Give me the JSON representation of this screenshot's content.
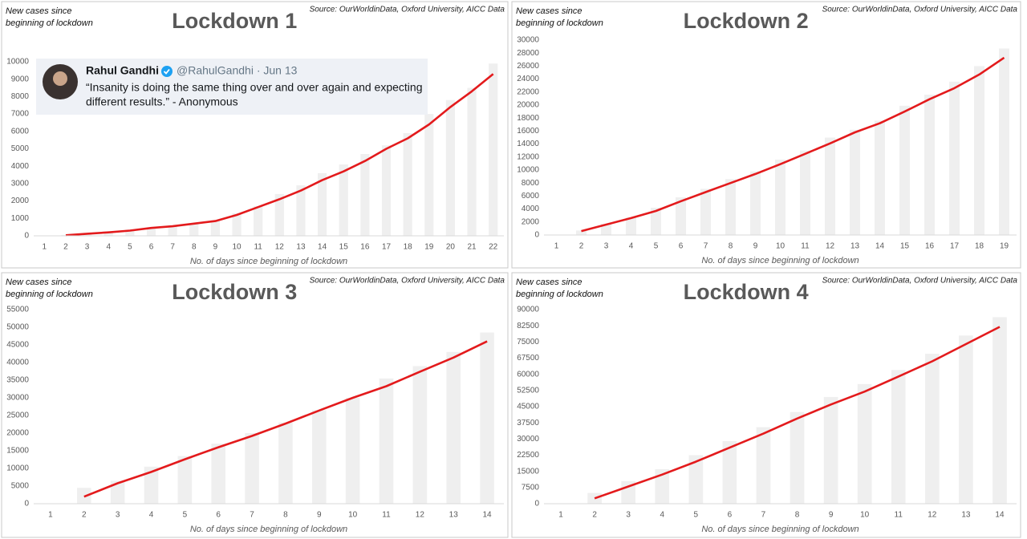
{
  "chart_data": [
    {
      "type": "combo",
      "title": "Lockdown 1",
      "source": "Source: OurWorldinData, Oxford University, AICC Data",
      "ylabel": [
        "New cases since",
        "beginning of lockdown"
      ],
      "xlabel": "No. of days since beginning of lockdown",
      "categories": [
        "1",
        "2",
        "3",
        "4",
        "5",
        "6",
        "7",
        "8",
        "9",
        "10",
        "11",
        "12",
        "13",
        "14",
        "15",
        "16",
        "17",
        "18",
        "19",
        "20",
        "21",
        "22"
      ],
      "series": [
        {
          "type": "bar",
          "color": "#efefef",
          "values": [
            0,
            50,
            150,
            250,
            350,
            450,
            600,
            700,
            900,
            1300,
            1700,
            2400,
            2900,
            3600,
            4100,
            4700,
            5200,
            5900,
            7000,
            7800,
            8500,
            9900
          ]
        },
        {
          "type": "line",
          "color": "#e31a1c",
          "values": [
            null,
            30,
            120,
            200,
            300,
            450,
            550,
            700,
            850,
            1200,
            1650,
            2100,
            2600,
            3200,
            3700,
            4300,
            5000,
            5600,
            6400,
            7400,
            8300,
            9300
          ]
        }
      ],
      "ylim": [
        0,
        10000
      ],
      "yticks": [
        0,
        1000,
        2000,
        3000,
        4000,
        5000,
        6000,
        7000,
        8000,
        9000,
        10000
      ],
      "annotation": {
        "name": "Rahul Gandhi",
        "byline": "@RahulGandhi · Jun 13",
        "text": [
          "“Insanity is doing the same thing over and over again and expecting",
          "different results.” - Anonymous"
        ]
      }
    },
    {
      "type": "combo",
      "title": "Lockdown 2",
      "source": "Source: OurWorldinData, Oxford University, AICC Data",
      "ylabel": [
        "New cases  since",
        "beginning of lockdown"
      ],
      "xlabel": "No. of days since beginning of lockdown",
      "categories": [
        "1",
        "2",
        "3",
        "4",
        "5",
        "6",
        "7",
        "8",
        "9",
        "10",
        "11",
        "12",
        "13",
        "14",
        "15",
        "16",
        "17",
        "18",
        "19"
      ],
      "series": [
        {
          "type": "bar",
          "color": "#efefef",
          "values": [
            0,
            700,
            1700,
            2700,
            4200,
            5800,
            7100,
            8600,
            9800,
            11600,
            13000,
            15000,
            16200,
            17600,
            19900,
            21600,
            23600,
            26000,
            28700
          ]
        },
        {
          "type": "line",
          "color": "#e31a1c",
          "values": [
            null,
            600,
            1600,
            2600,
            3700,
            5200,
            6600,
            8000,
            9400,
            10900,
            12500,
            14100,
            15800,
            17200,
            19000,
            20900,
            22600,
            24700,
            27300
          ]
        }
      ],
      "ylim": [
        0,
        30000
      ],
      "yticks": [
        0,
        2000,
        4000,
        6000,
        8000,
        10000,
        12000,
        14000,
        16000,
        18000,
        20000,
        22000,
        24000,
        26000,
        28000,
        30000
      ]
    },
    {
      "type": "combo",
      "title": "Lockdown 3",
      "source": "Source: OurWorldinData, Oxford University, AICC Data",
      "ylabel": [
        "New cases since",
        "beginning of lockdown"
      ],
      "xlabel": "No. of days since beginning of lockdown",
      "categories": [
        "1",
        "2",
        "3",
        "4",
        "5",
        "6",
        "7",
        "8",
        "9",
        "10",
        "11",
        "12",
        "13",
        "14"
      ],
      "series": [
        {
          "type": "bar",
          "color": "#efefef",
          "values": [
            0,
            4500,
            6500,
            10500,
            13500,
            17000,
            20000,
            23000,
            26500,
            30000,
            35500,
            39000,
            43000,
            48500
          ]
        },
        {
          "type": "line",
          "color": "#e31a1c",
          "values": [
            null,
            2000,
            5800,
            9000,
            12600,
            16000,
            19200,
            22700,
            26400,
            30000,
            33300,
            37400,
            41400,
            46000
          ]
        }
      ],
      "ylim": [
        0,
        55000
      ],
      "yticks": [
        0,
        5000,
        10000,
        15000,
        20000,
        25000,
        30000,
        35000,
        40000,
        45000,
        50000,
        55000
      ]
    },
    {
      "type": "combo",
      "title": "Lockdown 4",
      "source": "Source: OurWorldinData, Oxford University, AICC Data",
      "ylabel": [
        "New cases  since",
        "beginning of lockdown"
      ],
      "xlabel": "No. of days since beginning of lockdown",
      "categories": [
        "1",
        "2",
        "3",
        "4",
        "5",
        "6",
        "7",
        "8",
        "9",
        "10",
        "11",
        "12",
        "13",
        "14"
      ],
      "series": [
        {
          "type": "bar",
          "color": "#efefef",
          "values": [
            0,
            5000,
            10500,
            16000,
            22500,
            29000,
            35500,
            42500,
            49500,
            55500,
            62000,
            69500,
            78000,
            86500
          ]
        },
        {
          "type": "line",
          "color": "#e31a1c",
          "values": [
            null,
            2500,
            8000,
            13500,
            19500,
            26000,
            32500,
            39500,
            46000,
            52000,
            59000,
            66000,
            74000,
            82000
          ]
        }
      ],
      "ylim": [
        0,
        90000
      ],
      "yticks": [
        0,
        7500,
        15000,
        22500,
        30000,
        37500,
        45000,
        52500,
        60000,
        67500,
        75000,
        82500,
        90000
      ]
    }
  ]
}
